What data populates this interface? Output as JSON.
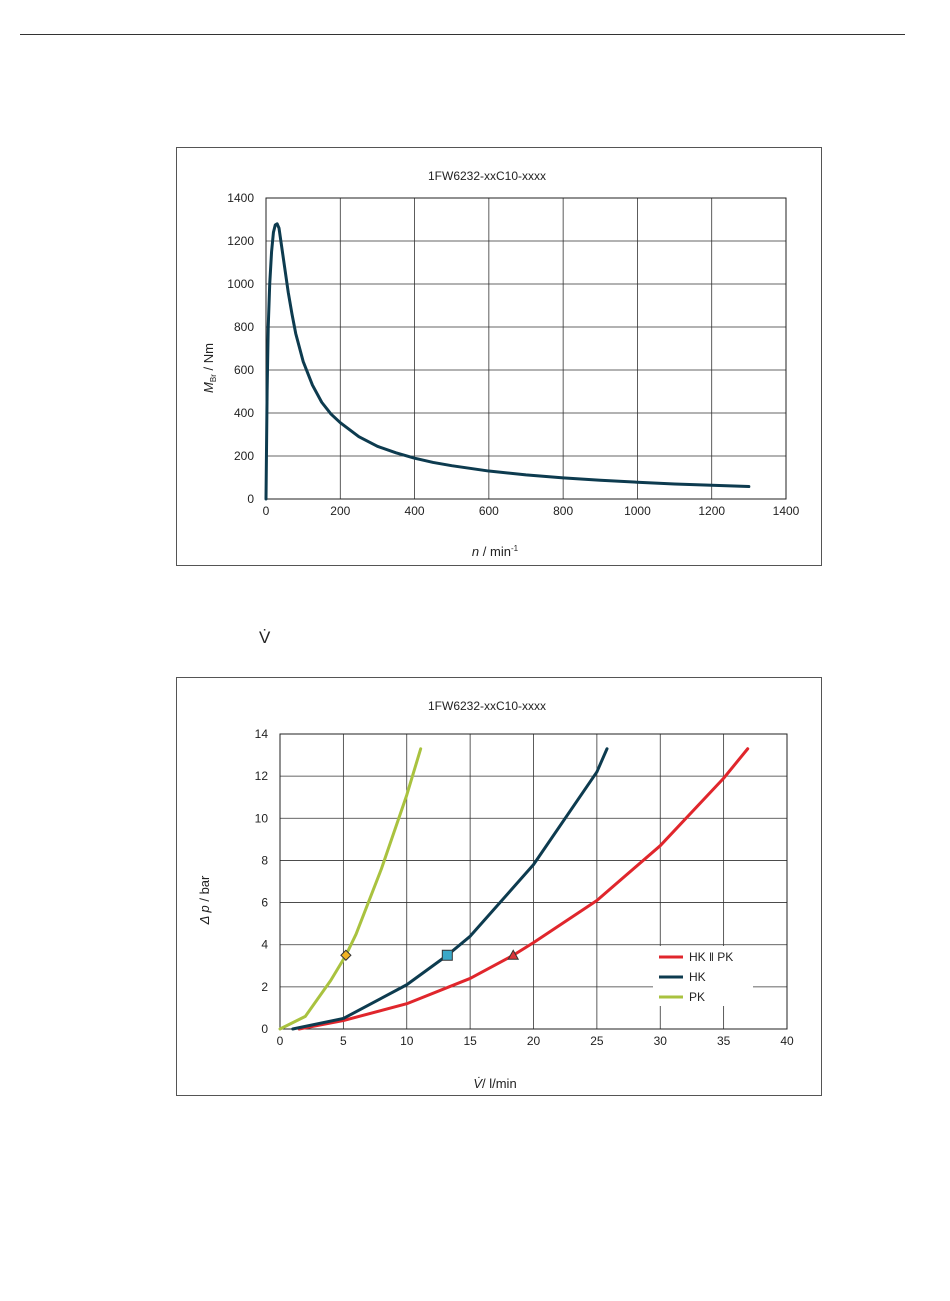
{
  "charts": [
    {
      "title": "1FW6232-xxC10-xxxx",
      "ylabel": {
        "main": "M",
        "sub": "Br",
        "rest": " / Nm"
      },
      "xlabel": {
        "main": "n",
        "rest": " / min",
        "sup": "-1"
      },
      "colors": {
        "line": "#0d3b4f"
      }
    },
    {
      "title": "1FW6232-xxC10-xxxx",
      "ylabel": {
        "main": "Δ p",
        "rest": " / bar"
      },
      "xlabel": {
        "main": "V̇",
        "rest": "/ l/min"
      },
      "legend": [
        "HK ‖ PK",
        "HK",
        "PK"
      ],
      "colors": {
        "HK_PK": "#e0262c",
        "HK": "#0d3b4f",
        "PK": "#a9c23f"
      }
    }
  ],
  "between_label": "V̇",
  "chart_data": [
    {
      "type": "line",
      "title": "1FW6232-xxC10-xxxx",
      "xlabel": "n / min-1",
      "ylabel": "MBr / Nm",
      "xlim": [
        0,
        1400
      ],
      "ylim": [
        0,
        1400
      ],
      "xticks": [
        0,
        200,
        400,
        600,
        800,
        1000,
        1200,
        1400
      ],
      "yticks": [
        0,
        200,
        400,
        600,
        800,
        1000,
        1200,
        1400
      ],
      "grid": true,
      "series": [
        {
          "x": [
            0,
            3,
            6,
            10,
            15,
            20,
            25,
            30,
            35,
            40,
            50,
            60,
            70,
            80,
            100,
            125,
            150,
            175,
            200,
            250,
            300,
            350,
            400,
            450,
            500,
            600,
            700,
            800,
            900,
            1000,
            1100,
            1200,
            1300
          ],
          "y": [
            0,
            500,
            800,
            1000,
            1150,
            1240,
            1275,
            1280,
            1260,
            1200,
            1080,
            960,
            860,
            770,
            640,
            530,
            450,
            395,
            355,
            290,
            245,
            215,
            190,
            170,
            155,
            130,
            112,
            98,
            87,
            78,
            70,
            64,
            58
          ]
        }
      ]
    },
    {
      "type": "line",
      "title": "1FW6232-xxC10-xxxx",
      "xlabel": "V̇/ l/min",
      "ylabel": "Δ p / bar",
      "xlim": [
        0,
        40
      ],
      "ylim": [
        0,
        14
      ],
      "xticks": [
        0,
        5,
        10,
        15,
        20,
        25,
        30,
        35,
        40
      ],
      "yticks": [
        0,
        2,
        4,
        6,
        8,
        10,
        12,
        14
      ],
      "grid": true,
      "legend_position": "right",
      "series": [
        {
          "name": "HK ‖ PK",
          "x": [
            1.5,
            5,
            10,
            15,
            18.4,
            20,
            25,
            30,
            35,
            36.9
          ],
          "y": [
            0,
            0.4,
            1.2,
            2.4,
            3.5,
            4.1,
            6.1,
            8.7,
            11.9,
            13.3
          ],
          "marker": {
            "shape": "triangle",
            "x": 18.4,
            "y": 3.5
          }
        },
        {
          "name": "HK",
          "x": [
            1,
            5,
            10,
            13.2,
            15,
            20,
            25,
            25.8
          ],
          "y": [
            0,
            0.5,
            2.1,
            3.5,
            4.4,
            7.8,
            12.2,
            13.3
          ],
          "marker": {
            "shape": "square",
            "x": 13.2,
            "y": 3.5
          }
        },
        {
          "name": "PK",
          "x": [
            0,
            2,
            4,
            5.2,
            6,
            8,
            10,
            11.1
          ],
          "y": [
            0,
            0.6,
            2.3,
            3.5,
            4.5,
            7.6,
            11.1,
            13.3
          ],
          "marker": {
            "shape": "diamond",
            "x": 5.2,
            "y": 3.5
          }
        }
      ]
    }
  ]
}
